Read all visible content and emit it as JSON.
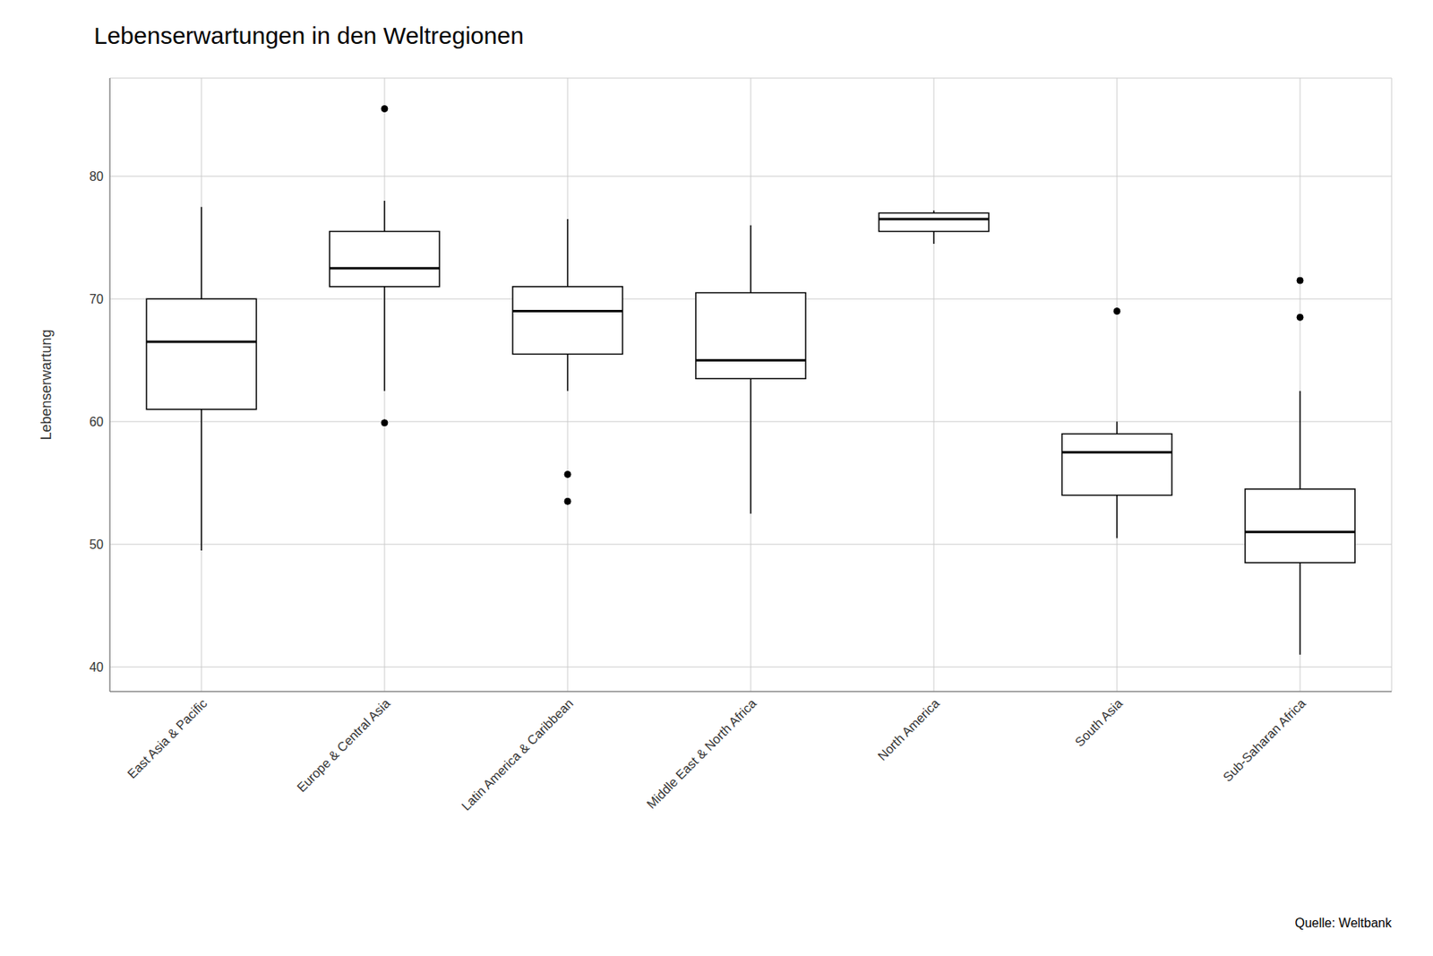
{
  "chart_data": {
    "type": "box",
    "title": "Lebenserwartungen in den Weltregionen",
    "ylabel": "Lebenserwartung",
    "annotation": "Quelle: Weltbank",
    "categories": [
      "East Asia & Pacific",
      "Europe & Central Asia",
      "Latin America & Caribbean",
      "Middle East & North Africa",
      "North America",
      "South Asia",
      "Sub-Saharan Africa"
    ],
    "boxes": [
      {
        "whislo": 49.5,
        "q1": 61.0,
        "med": 66.5,
        "q3": 70.0,
        "whishi": 77.5,
        "fliers": []
      },
      {
        "whislo": 62.5,
        "q1": 71.0,
        "med": 72.5,
        "q3": 75.5,
        "whishi": 78.0,
        "fliers": [
          59.9,
          85.5
        ]
      },
      {
        "whislo": 62.5,
        "q1": 65.5,
        "med": 69.0,
        "q3": 71.0,
        "whishi": 76.5,
        "fliers": [
          55.7,
          53.5
        ]
      },
      {
        "whislo": 52.5,
        "q1": 63.5,
        "med": 65.0,
        "q3": 70.5,
        "whishi": 76.0,
        "fliers": []
      },
      {
        "whislo": 74.5,
        "q1": 75.5,
        "med": 76.5,
        "q3": 77.0,
        "whishi": 77.2,
        "fliers": []
      },
      {
        "whislo": 50.5,
        "q1": 54.0,
        "med": 57.5,
        "q3": 59.0,
        "whishi": 60.0,
        "fliers": [
          69.0
        ]
      },
      {
        "whislo": 41.0,
        "q1": 48.5,
        "med": 51.0,
        "q3": 54.5,
        "whishi": 62.5,
        "fliers": [
          71.5,
          68.5
        ]
      }
    ],
    "color": "#000000",
    "ylim": [
      38,
      88
    ],
    "yticks": [
      40,
      50,
      60,
      70,
      80
    ],
    "grid": true
  }
}
